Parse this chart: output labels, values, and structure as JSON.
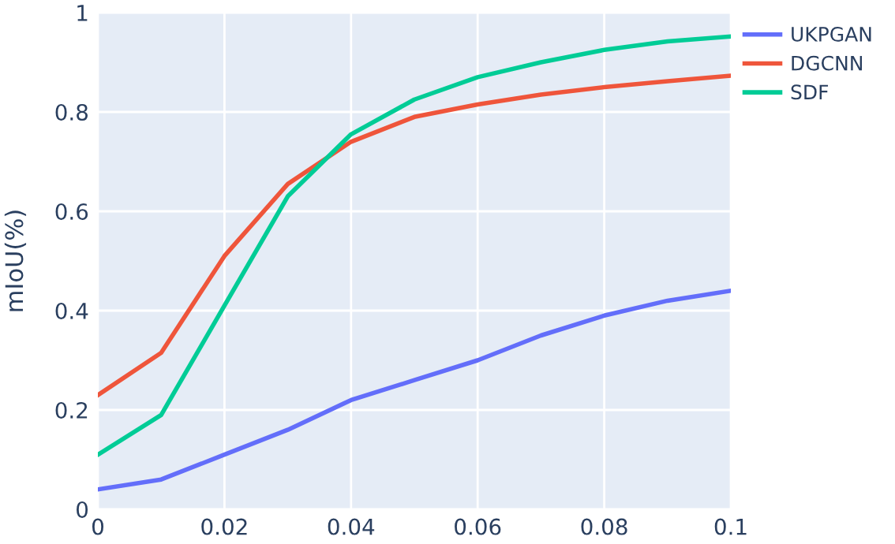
{
  "chart_data": {
    "type": "line",
    "ylabel": "mIoU(%)",
    "x": [
      0,
      0.01,
      0.02,
      0.03,
      0.04,
      0.05,
      0.06,
      0.07,
      0.08,
      0.09,
      0.1
    ],
    "series": [
      {
        "name": "UKPGAN",
        "color": "#636efa",
        "values": [
          0.04,
          0.06,
          0.11,
          0.16,
          0.22,
          0.26,
          0.3,
          0.35,
          0.39,
          0.42,
          0.44
        ]
      },
      {
        "name": "DGCNN",
        "color": "#ef553b",
        "values": [
          0.23,
          0.315,
          0.51,
          0.655,
          0.74,
          0.79,
          0.815,
          0.835,
          0.85,
          0.862,
          0.873
        ]
      },
      {
        "name": "SDF",
        "color": "#00cc96",
        "values": [
          0.11,
          0.19,
          0.41,
          0.63,
          0.755,
          0.825,
          0.87,
          0.9,
          0.925,
          0.942,
          0.952
        ]
      }
    ],
    "xlim": [
      0,
      0.1
    ],
    "xticks": [
      0,
      0.02,
      0.04,
      0.06,
      0.08,
      0.1
    ],
    "ylim": [
      0,
      1
    ],
    "yticks": [
      0,
      0.2,
      0.4,
      0.6,
      0.8,
      1
    ],
    "grid": true,
    "legend": "top right",
    "marker": "none",
    "line_style": "solid"
  }
}
